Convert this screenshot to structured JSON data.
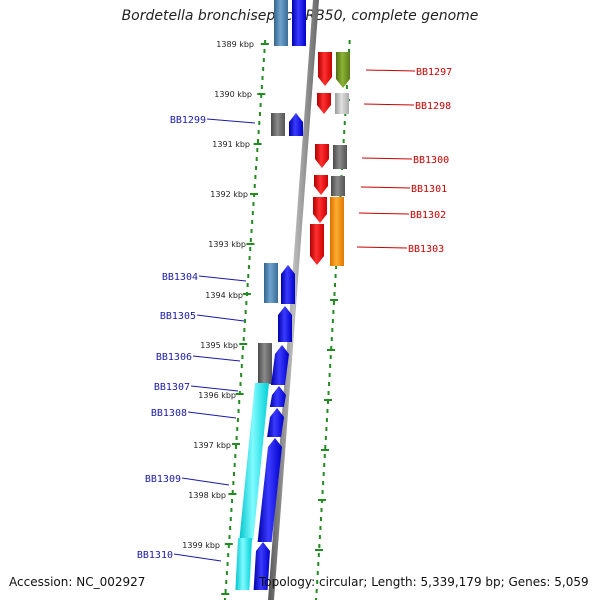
{
  "title": "Bordetella bronchiseptica RB50, complete genome",
  "accession": "Accession: NC_002927",
  "topology": "Topology: circular; Length: 5,339,179 bp; Genes: 5,059",
  "scale_labels": [
    "1389 kbp",
    "1390 kbp",
    "1391 kbp",
    "1392 kbp",
    "1393 kbp",
    "1394 kbp",
    "1395 kbp",
    "1396 kbp",
    "1397 kbp",
    "1398 kbp",
    "1399 kbp"
  ],
  "left_gene_labels": [
    "BB1299",
    "BB1304",
    "BB1305",
    "BB1306",
    "BB1307",
    "BB1308",
    "BB1309",
    "BB1310"
  ],
  "right_gene_labels": [
    "BB1297",
    "BB1298",
    "BB1300",
    "BB1301",
    "BB1302",
    "BB1303"
  ],
  "colors": {
    "forward_label": "#1a1aaa",
    "reverse_label": "#cc0000",
    "blue": "#0000ee",
    "red": "#ee0000",
    "gray": "#666666",
    "light_gray": "#bbbbbb",
    "olive": "#6b8e23",
    "orange": "#ff8c00",
    "steel": "#4682b4",
    "cyan": "#00e5ee",
    "dotted_line": "#228b22"
  }
}
